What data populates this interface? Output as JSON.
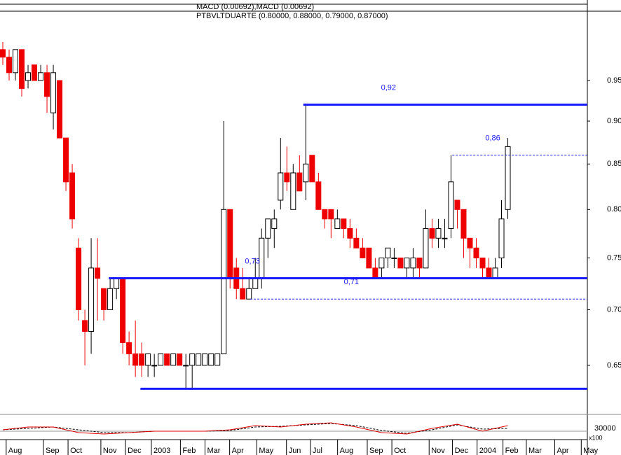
{
  "chart_data": {
    "type": "candlestick",
    "title": "PTBVLTDUARTE (0.80000, 0.88000, 0.79000, 0.87000)",
    "indicator_title": "MACD (0.00692),MACD (0.00692)",
    "log_scale": true,
    "ylim": [
      0.61,
      1.04
    ],
    "yticks": [
      0.65,
      {
        "value": 0.7,
        "label": "0.70"
      },
      0.75,
      {
        "value": 0.8,
        "label": "0.80"
      },
      0.85,
      {
        "value": 0.9,
        "label": "0.90"
      },
      0.95
    ],
    "xlim": [
      0,
      92.6
    ],
    "xticks": [
      {
        "value": 1.2,
        "label": "Aug"
      },
      {
        "value": 7.1,
        "label": "Sep"
      },
      {
        "value": 11,
        "label": "Oct"
      },
      {
        "value": 16.2,
        "label": "Nov"
      },
      {
        "value": 20.1,
        "label": "Dec"
      },
      {
        "value": 24.2,
        "label": "2003"
      },
      {
        "value": 28.8,
        "label": "Feb"
      },
      {
        "value": 32.7,
        "label": "Mar"
      },
      {
        "value": 36.6,
        "label": "Apr"
      },
      {
        "value": 40.9,
        "label": "May"
      },
      {
        "value": 45.6,
        "label": "Jun"
      },
      {
        "value": 49.4,
        "label": "Jul"
      },
      {
        "value": 53.7,
        "label": "Aug"
      },
      {
        "value": 58.4,
        "label": "Sep"
      },
      {
        "value": 62.3,
        "label": "Oct"
      },
      {
        "value": 68.2,
        "label": "Nov"
      },
      {
        "value": 71.9,
        "label": "Dec"
      },
      {
        "value": 75.8,
        "label": "2004"
      },
      {
        "value": 79.9,
        "label": "Feb"
      },
      {
        "value": 83.6,
        "label": "Mar"
      },
      {
        "value": 88.1,
        "label": "Apr"
      },
      {
        "value": 92.3,
        "label": "May"
      }
    ],
    "up_color": "#ffffff",
    "down_color": "#ee0000",
    "candles": [
      [
        0.99,
        1.0,
        0.97,
        0.98
      ],
      [
        0.98,
        0.99,
        0.95,
        0.96
      ],
      [
        0.96,
        0.99,
        0.95,
        0.99
      ],
      [
        0.99,
        0.99,
        0.93,
        0.94
      ],
      [
        0.95,
        0.97,
        0.94,
        0.96
      ],
      [
        0.97,
        0.97,
        0.95,
        0.95
      ],
      [
        0.95,
        0.97,
        0.95,
        0.96
      ],
      [
        0.96,
        0.97,
        0.91,
        0.93
      ],
      [
        0.91,
        0.97,
        0.89,
        0.96
      ],
      [
        0.95,
        0.95,
        0.88,
        0.88
      ],
      [
        0.88,
        0.88,
        0.82,
        0.83
      ],
      [
        0.84,
        0.85,
        0.78,
        0.79
      ],
      [
        0.76,
        0.77,
        0.69,
        0.7
      ],
      [
        0.69,
        0.7,
        0.65,
        0.68
      ],
      [
        0.68,
        0.77,
        0.66,
        0.74
      ],
      [
        0.74,
        0.77,
        0.69,
        0.73
      ],
      [
        0.72,
        0.72,
        0.69,
        0.7
      ],
      [
        0.7,
        0.73,
        0.7,
        0.72
      ],
      [
        0.72,
        0.73,
        0.71,
        0.73
      ],
      [
        0.73,
        0.73,
        0.66,
        0.67
      ],
      [
        0.67,
        0.68,
        0.65,
        0.66
      ],
      [
        0.66,
        0.69,
        0.64,
        0.65
      ],
      [
        0.66,
        0.67,
        0.64,
        0.65
      ],
      [
        0.65,
        0.66,
        0.64,
        0.66
      ],
      [
        0.65,
        0.66,
        0.64,
        0.65
      ],
      [
        0.65,
        0.66,
        0.65,
        0.66
      ],
      [
        0.66,
        0.66,
        0.65,
        0.65
      ],
      [
        0.65,
        0.66,
        0.65,
        0.66
      ],
      [
        0.66,
        0.66,
        0.65,
        0.65
      ],
      [
        0.65,
        0.66,
        0.63,
        0.65
      ],
      [
        0.65,
        0.66,
        0.63,
        0.66
      ],
      [
        0.65,
        0.66,
        0.65,
        0.66
      ],
      [
        0.65,
        0.66,
        0.65,
        0.66
      ],
      [
        0.65,
        0.66,
        0.65,
        0.66
      ],
      [
        0.65,
        0.66,
        0.65,
        0.66
      ],
      [
        0.66,
        0.9,
        0.66,
        0.8
      ],
      [
        0.8,
        0.8,
        0.72,
        0.73
      ],
      [
        0.74,
        0.75,
        0.71,
        0.72
      ],
      [
        0.72,
        0.74,
        0.71,
        0.71
      ],
      [
        0.71,
        0.73,
        0.71,
        0.72
      ],
      [
        0.72,
        0.75,
        0.72,
        0.73
      ],
      [
        0.73,
        0.78,
        0.72,
        0.77
      ],
      [
        0.77,
        0.79,
        0.75,
        0.79
      ],
      [
        0.78,
        0.8,
        0.76,
        0.79
      ],
      [
        0.81,
        0.88,
        0.8,
        0.84
      ],
      [
        0.84,
        0.87,
        0.82,
        0.83
      ],
      [
        0.8,
        0.85,
        0.8,
        0.84
      ],
      [
        0.84,
        0.86,
        0.82,
        0.82
      ],
      [
        0.83,
        0.92,
        0.81,
        0.85
      ],
      [
        0.86,
        0.86,
        0.83,
        0.83
      ],
      [
        0.83,
        0.84,
        0.8,
        0.8
      ],
      [
        0.8,
        0.8,
        0.78,
        0.79
      ],
      [
        0.8,
        0.8,
        0.77,
        0.79
      ],
      [
        0.78,
        0.8,
        0.78,
        0.79
      ],
      [
        0.79,
        0.79,
        0.77,
        0.78
      ],
      [
        0.78,
        0.79,
        0.76,
        0.77
      ],
      [
        0.77,
        0.78,
        0.76,
        0.76
      ],
      [
        0.76,
        0.77,
        0.75,
        0.75
      ],
      [
        0.76,
        0.76,
        0.74,
        0.74
      ],
      [
        0.74,
        0.75,
        0.73,
        0.73
      ],
      [
        0.74,
        0.75,
        0.73,
        0.75
      ],
      [
        0.75,
        0.76,
        0.74,
        0.76
      ],
      [
        0.75,
        0.76,
        0.74,
        0.75
      ],
      [
        0.75,
        0.75,
        0.74,
        0.74
      ],
      [
        0.74,
        0.75,
        0.73,
        0.75
      ],
      [
        0.74,
        0.76,
        0.73,
        0.75
      ],
      [
        0.75,
        0.75,
        0.73,
        0.74
      ],
      [
        0.74,
        0.8,
        0.74,
        0.78
      ],
      [
        0.78,
        0.79,
        0.76,
        0.77
      ],
      [
        0.77,
        0.79,
        0.76,
        0.78
      ],
      [
        0.77,
        0.79,
        0.76,
        0.77
      ],
      [
        0.78,
        0.86,
        0.77,
        0.83
      ],
      [
        0.81,
        0.81,
        0.78,
        0.8
      ],
      [
        0.8,
        0.8,
        0.75,
        0.77
      ],
      [
        0.77,
        0.77,
        0.74,
        0.76
      ],
      [
        0.76,
        0.77,
        0.74,
        0.75
      ],
      [
        0.75,
        0.75,
        0.73,
        0.74
      ],
      [
        0.74,
        0.75,
        0.73,
        0.73
      ],
      [
        0.73,
        0.75,
        0.73,
        0.74
      ],
      [
        0.75,
        0.81,
        0.74,
        0.79
      ],
      [
        0.8,
        0.88,
        0.79,
        0.87
      ]
    ],
    "levels": [
      {
        "value": 0.92,
        "label": "0,92",
        "style": "solid",
        "x_start": 47.6
      },
      {
        "value": 0.86,
        "label": "0,86",
        "style": "dashed",
        "x_start": 71.2
      },
      {
        "value": 0.73,
        "label": "0,73",
        "style": "solid",
        "x_start": 16.8
      },
      {
        "value": 0.71,
        "label": "0,71",
        "style": "dashed",
        "x_start": 39.2
      },
      {
        "value": 0.63,
        "style": "solid",
        "x_start": 21.8
      }
    ],
    "level_color": "#1a1aff",
    "macd": {
      "ylim": [
        -0.5,
        1
      ],
      "x": [
        0,
        4,
        8,
        12,
        16,
        20,
        24,
        28,
        32,
        36,
        40,
        44,
        48,
        52,
        56,
        60,
        64,
        68,
        72,
        76,
        80
      ],
      "values": [
        0.1,
        0.3,
        0.3,
        -0.1,
        -0.2,
        -0.1,
        0.0,
        0.0,
        0.0,
        0.1,
        0.4,
        0.3,
        0.5,
        0.6,
        0.3,
        -0.1,
        -0.2,
        0.2,
        0.5,
        0.0,
        0.4
      ],
      "signal": [
        0.1,
        0.2,
        0.3,
        0.1,
        -0.1,
        -0.1,
        0.0,
        0.0,
        0.0,
        0.05,
        0.3,
        0.35,
        0.45,
        0.55,
        0.4,
        0.05,
        -0.15,
        0.1,
        0.45,
        0.15,
        0.2
      ],
      "color": "#dd0000",
      "signal_color": "#000000",
      "scale_label": "30000",
      "unit_label": "x100"
    }
  }
}
